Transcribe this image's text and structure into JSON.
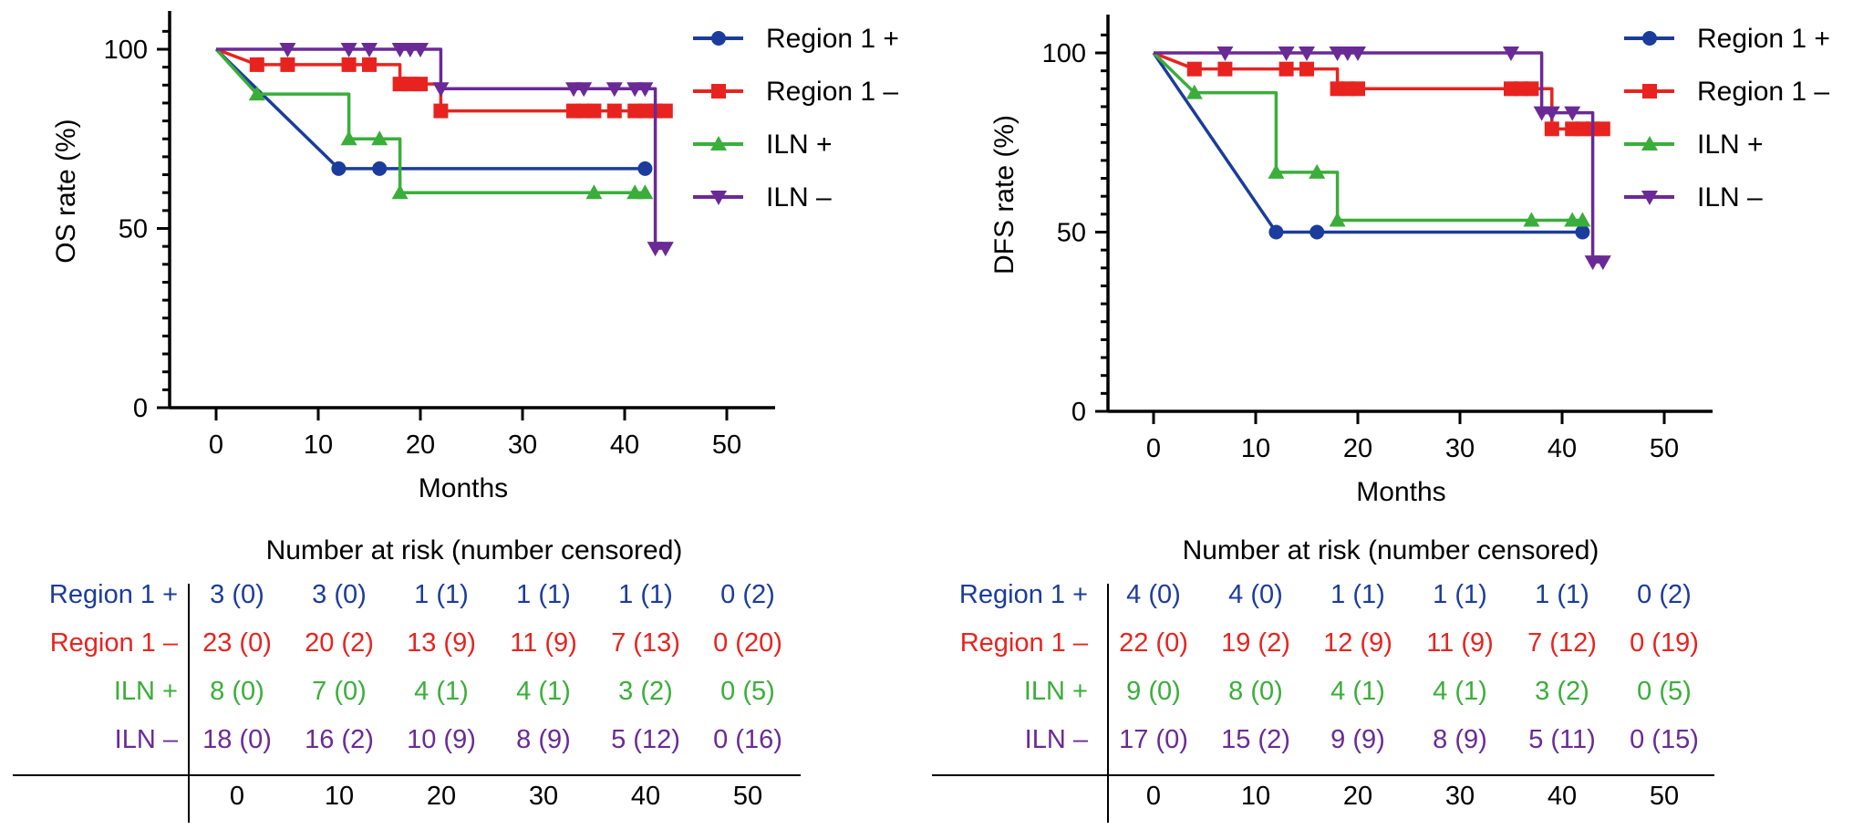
{
  "colors": {
    "axis": "#000000",
    "Region 1 +": "#1b3c9c",
    "Region 1 –": "#e8231f",
    "ILN +": "#3aae3a",
    "ILN –": "#6a2a96"
  },
  "risk_table_title": "Number at risk (number censored)",
  "chart_data": [
    {
      "id": "os",
      "type": "line",
      "subtype": "kaplan-meier",
      "title": "",
      "xlabel": "Months",
      "ylabel": "OS rate (%)",
      "xlim": [
        -5,
        55
      ],
      "ylim": [
        0,
        110
      ],
      "xticks": [
        0,
        10,
        20,
        30,
        40,
        50
      ],
      "yticks": [
        0,
        50,
        100
      ],
      "legend": [
        "Region 1 +",
        "Region 1 –",
        "ILN +",
        "ILN –"
      ],
      "legend_position": "top-right",
      "series": [
        {
          "name": "Region 1 +",
          "marker": "circle",
          "points": [
            [
              0,
              100
            ],
            [
              12,
              66.7
            ],
            [
              16,
              66.7
            ],
            [
              42,
              66.7
            ]
          ]
        },
        {
          "name": "Region 1 –",
          "marker": "square",
          "points": [
            [
              0,
              100
            ],
            [
              4,
              95.7
            ],
            [
              7,
              95.7
            ],
            [
              13,
              95.7
            ],
            [
              15,
              95.7
            ],
            [
              18,
              90.3
            ],
            [
              19,
              90.3
            ],
            [
              20,
              90.3
            ],
            [
              22,
              82.8
            ],
            [
              35,
              82.8
            ],
            [
              36,
              82.8
            ],
            [
              37,
              82.8
            ],
            [
              39,
              82.8
            ],
            [
              41,
              82.8
            ],
            [
              42,
              82.8
            ],
            [
              43,
              82.8
            ],
            [
              44,
              82.8
            ]
          ]
        },
        {
          "name": "ILN +",
          "marker": "triangle-up",
          "points": [
            [
              0,
              100
            ],
            [
              4,
              87.5
            ],
            [
              13,
              75
            ],
            [
              16,
              75
            ],
            [
              18,
              60
            ],
            [
              37,
              60
            ],
            [
              41,
              60
            ],
            [
              42,
              60
            ]
          ]
        },
        {
          "name": "ILN –",
          "marker": "triangle-down",
          "points": [
            [
              0,
              100
            ],
            [
              7,
              100
            ],
            [
              13,
              100
            ],
            [
              15,
              100
            ],
            [
              18,
              100
            ],
            [
              19,
              100
            ],
            [
              20,
              100
            ],
            [
              22,
              89
            ],
            [
              35,
              89
            ],
            [
              36,
              89
            ],
            [
              39,
              89
            ],
            [
              41,
              89
            ],
            [
              42,
              89
            ],
            [
              43,
              44.5
            ],
            [
              44,
              44.5
            ]
          ]
        }
      ],
      "risk_table": {
        "time_points": [
          "0",
          "10",
          "20",
          "30",
          "40",
          "50"
        ],
        "rows": [
          {
            "label": "Region 1 +",
            "values": [
              "3 (0)",
              "3 (0)",
              "1 (1)",
              "1 (1)",
              "1 (1)",
              "0 (2)"
            ]
          },
          {
            "label": "Region 1 –",
            "values": [
              "23 (0)",
              "20 (2)",
              "13 (9)",
              "11 (9)",
              "7 (13)",
              "0 (20)"
            ]
          },
          {
            "label": "ILN +",
            "values": [
              "8 (0)",
              "7 (0)",
              "4 (1)",
              "4 (1)",
              "3 (2)",
              "0 (5)"
            ]
          },
          {
            "label": "ILN –",
            "values": [
              "18 (0)",
              "16 (2)",
              "10 (9)",
              "8 (9)",
              "5 (12)",
              "0 (16)"
            ]
          }
        ]
      }
    },
    {
      "id": "dfs",
      "type": "line",
      "subtype": "kaplan-meier",
      "title": "",
      "xlabel": "Months",
      "ylabel": "DFS rate (%)",
      "xlim": [
        -5,
        55
      ],
      "ylim": [
        0,
        110
      ],
      "xticks": [
        0,
        10,
        20,
        30,
        40,
        50
      ],
      "yticks": [
        0,
        50,
        100
      ],
      "legend": [
        "Region 1 +",
        "Region 1 –",
        "ILN +",
        "ILN –"
      ],
      "legend_position": "top-right",
      "series": [
        {
          "name": "Region 1 +",
          "marker": "circle",
          "points": [
            [
              0,
              100
            ],
            [
              12,
              50
            ],
            [
              16,
              50
            ],
            [
              42,
              50
            ]
          ]
        },
        {
          "name": "Region 1 –",
          "marker": "square",
          "points": [
            [
              0,
              100
            ],
            [
              4,
              95.5
            ],
            [
              7,
              95.5
            ],
            [
              13,
              95.5
            ],
            [
              15,
              95.5
            ],
            [
              18,
              90
            ],
            [
              19,
              90
            ],
            [
              20,
              90
            ],
            [
              35,
              90
            ],
            [
              36,
              90
            ],
            [
              37,
              90
            ],
            [
              39,
              78.8
            ],
            [
              41,
              78.8
            ],
            [
              42,
              78.8
            ],
            [
              43,
              78.8
            ],
            [
              44,
              78.8
            ]
          ]
        },
        {
          "name": "ILN +",
          "marker": "triangle-up",
          "points": [
            [
              0,
              100
            ],
            [
              4,
              88.9
            ],
            [
              12,
              66.7
            ],
            [
              16,
              66.7
            ],
            [
              18,
              53.3
            ],
            [
              37,
              53.3
            ],
            [
              41,
              53.3
            ],
            [
              42,
              53.3
            ]
          ]
        },
        {
          "name": "ILN –",
          "marker": "triangle-down",
          "points": [
            [
              0,
              100
            ],
            [
              7,
              100
            ],
            [
              13,
              100
            ],
            [
              15,
              100
            ],
            [
              18,
              100
            ],
            [
              19,
              100
            ],
            [
              20,
              100
            ],
            [
              35,
              100
            ],
            [
              38,
              83.3
            ],
            [
              39,
              83.3
            ],
            [
              41,
              83.3
            ],
            [
              43,
              41.7
            ],
            [
              44,
              41.7
            ]
          ]
        }
      ],
      "risk_table": {
        "time_points": [
          "0",
          "10",
          "20",
          "30",
          "40",
          "50"
        ],
        "rows": [
          {
            "label": "Region 1 +",
            "values": [
              "4 (0)",
              "4 (0)",
              "1 (1)",
              "1 (1)",
              "1 (1)",
              "0 (2)"
            ]
          },
          {
            "label": "Region 1 –",
            "values": [
              "22 (0)",
              "19 (2)",
              "12 (9)",
              "11 (9)",
              "7 (12)",
              "0 (19)"
            ]
          },
          {
            "label": "ILN +",
            "values": [
              "9 (0)",
              "8 (0)",
              "4 (1)",
              "4 (1)",
              "3 (2)",
              "0 (5)"
            ]
          },
          {
            "label": "ILN –",
            "values": [
              "17 (0)",
              "15 (2)",
              "9 (9)",
              "8 (9)",
              "5 (11)",
              "0 (15)"
            ]
          }
        ]
      }
    }
  ]
}
